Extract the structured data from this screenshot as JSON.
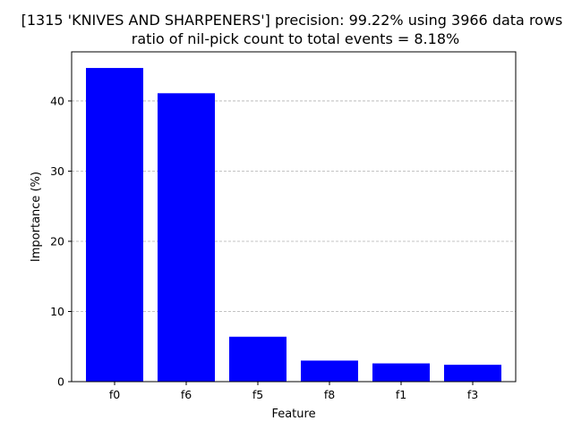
{
  "chart_data": {
    "type": "bar",
    "title_line1": "[1315 'KNIVES AND SHARPENERS'] precision: 99.22% using 3966 data rows",
    "title_line2": "ratio of nil-pick count to total events = 8.18%",
    "xlabel": "Feature",
    "ylabel": "Importance (%)",
    "categories": [
      "f0",
      "f6",
      "f5",
      "f8",
      "f1",
      "f3"
    ],
    "values": [
      44.7,
      41.1,
      6.4,
      3.0,
      2.6,
      2.4
    ],
    "ylim": [
      0,
      47
    ],
    "yticks": [
      0,
      10,
      20,
      30,
      40
    ],
    "grid": "y-dashed",
    "bar_color": "#0000ff",
    "grid_color": "#b0b0b0"
  }
}
